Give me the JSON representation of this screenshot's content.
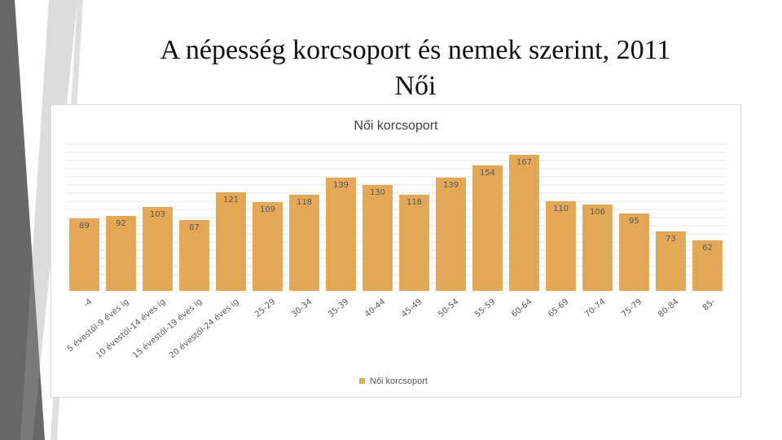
{
  "slide": {
    "title_line1": "A népesség korcsoport és nemek szerint, 2011",
    "title_line2": "Női"
  },
  "colors": {
    "bar": "#e3a857",
    "grid": "#e6e6e6",
    "decor_dark": "#4d4d4d",
    "decor_light": "#b0b0b0"
  },
  "chart_data": {
    "type": "bar",
    "title": "Női korcsoport",
    "categories": [
      "-4",
      "5 évestől-9 éves ig",
      "10 évestől-14 éves ig",
      "15 évestől-19 éves ig",
      "20 évestől-24 éves ig",
      "25-29",
      "30-34",
      "35-39",
      "40-44",
      "45-49",
      "50-54",
      "55-59",
      "60-64",
      "65-69",
      "70-74",
      "75-79",
      "80-84",
      "85-"
    ],
    "series": [
      {
        "name": "Női korcsoport",
        "values": [
          89,
          92,
          103,
          87,
          121,
          109,
          118,
          139,
          130,
          118,
          139,
          154,
          167,
          110,
          106,
          95,
          73,
          62
        ]
      }
    ],
    "ylim": [
      0,
      180
    ],
    "grid": true,
    "legend": "bottom"
  }
}
